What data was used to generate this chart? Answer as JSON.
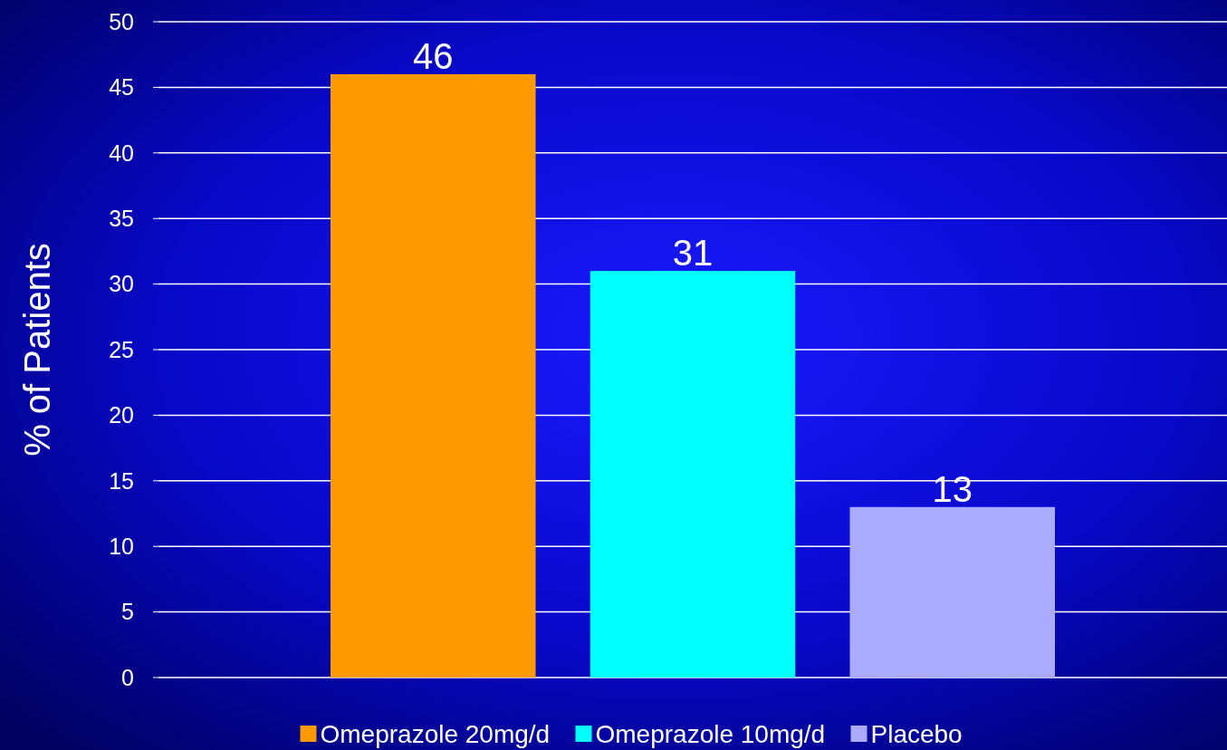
{
  "chart_data": {
    "type": "bar",
    "ylabel": "% of Patients",
    "categories": [
      null
    ],
    "series": [
      {
        "name": "Omeprazole 20mg/d",
        "color": "#ff9900",
        "values": [
          46
        ]
      },
      {
        "name": "Omeprazole 10mg/d",
        "color": "#00ffff",
        "values": [
          31
        ]
      },
      {
        "name": "Placebo",
        "color": "#aaaaff",
        "values": [
          13
        ]
      }
    ],
    "ylim": [
      0,
      50
    ],
    "yticks": [
      0,
      5,
      10,
      15,
      20,
      25,
      30,
      35,
      40,
      45,
      50
    ],
    "grid": "y",
    "legend": "bottom",
    "data_labels": true
  }
}
